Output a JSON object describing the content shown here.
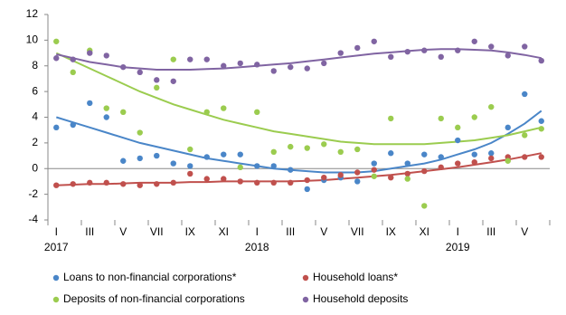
{
  "chart_data": {
    "type": "scatter",
    "categories": [
      "I",
      null,
      "III",
      null,
      "V",
      null,
      "VII",
      null,
      "IX",
      null,
      "XI",
      null,
      "I",
      null,
      "III",
      null,
      "V",
      null,
      "VII",
      null,
      "IX",
      null,
      "XI",
      null,
      "I",
      null,
      "III",
      null,
      "V",
      null
    ],
    "years": [
      "2017",
      "2018",
      "2019"
    ],
    "ylim": [
      -4,
      12
    ],
    "yticks": [
      -4,
      -2,
      0,
      2,
      4,
      6,
      8,
      10,
      12
    ],
    "legend": "bottom",
    "series": [
      {
        "name": "Loans to non-financial corporations*",
        "color": "#4a86c8",
        "values": [
          3.2,
          3.4,
          5.1,
          4.0,
          0.6,
          0.8,
          1.0,
          0.4,
          0.2,
          0.9,
          1.1,
          1.1,
          0.2,
          0.2,
          -0.1,
          -1.6,
          -0.9,
          -0.7,
          -1.0,
          0.4,
          1.2,
          0.4,
          1.1,
          0.9,
          2.2,
          1.1,
          1.2,
          3.2,
          5.8,
          3.7
        ],
        "trend": [
          4.0,
          3.6,
          3.2,
          2.8,
          2.4,
          2.0,
          1.7,
          1.4,
          1.1,
          0.8,
          0.6,
          0.4,
          0.2,
          0.0,
          -0.1,
          -0.2,
          -0.3,
          -0.3,
          -0.3,
          -0.2,
          0.0,
          0.2,
          0.4,
          0.7,
          1.1,
          1.5,
          2.0,
          2.7,
          3.5,
          4.5
        ]
      },
      {
        "name": "Household loans*",
        "color": "#c0504d",
        "values": [
          -1.3,
          -1.2,
          -1.1,
          -1.1,
          -1.2,
          -1.3,
          -1.2,
          -1.1,
          -0.4,
          -0.8,
          -0.8,
          -1.0,
          -1.1,
          -1.1,
          -1.1,
          -0.9,
          -0.7,
          -0.5,
          -0.3,
          -0.1,
          -0.7,
          -0.4,
          -0.2,
          0.1,
          0.4,
          0.5,
          0.8,
          0.9,
          0.9,
          0.9
        ],
        "trend": [
          -1.3,
          -1.25,
          -1.2,
          -1.2,
          -1.15,
          -1.1,
          -1.1,
          -1.1,
          -1.05,
          -1.05,
          -1.0,
          -1.0,
          -1.0,
          -1.0,
          -1.0,
          -0.95,
          -0.9,
          -0.8,
          -0.7,
          -0.6,
          -0.5,
          -0.35,
          -0.2,
          -0.05,
          0.1,
          0.3,
          0.5,
          0.7,
          0.95,
          1.2
        ]
      },
      {
        "name": "Deposits of non-financial corporations",
        "color": "#9bcc4f",
        "values": [
          9.9,
          7.5,
          9.2,
          4.7,
          4.4,
          2.8,
          6.3,
          8.5,
          1.5,
          4.4,
          4.7,
          0.1,
          4.4,
          1.3,
          1.7,
          1.6,
          1.9,
          1.3,
          1.5,
          -0.6,
          3.9,
          -0.8,
          -2.9,
          3.9,
          3.2,
          4.0,
          4.8,
          0.6,
          2.6,
          3.1
        ],
        "trend": [
          9.0,
          8.4,
          7.8,
          7.2,
          6.6,
          6.0,
          5.5,
          5.0,
          4.6,
          4.2,
          3.8,
          3.5,
          3.2,
          2.9,
          2.7,
          2.5,
          2.3,
          2.1,
          2.0,
          1.9,
          1.9,
          1.9,
          1.9,
          2.0,
          2.1,
          2.2,
          2.4,
          2.6,
          2.9,
          3.2
        ]
      },
      {
        "name": "Household deposits",
        "color": "#8064a2",
        "values": [
          8.6,
          8.5,
          9.0,
          8.8,
          7.9,
          7.5,
          6.9,
          6.8,
          8.5,
          8.5,
          8.0,
          8.2,
          8.1,
          7.6,
          7.9,
          7.8,
          8.2,
          9.0,
          9.4,
          9.9,
          8.7,
          9.1,
          9.2,
          8.7,
          9.2,
          9.9,
          9.5,
          8.8,
          9.5,
          8.4
        ],
        "trend": [
          8.9,
          8.6,
          8.3,
          8.1,
          7.9,
          7.8,
          7.7,
          7.7,
          7.7,
          7.75,
          7.8,
          7.9,
          8.0,
          8.1,
          8.2,
          8.35,
          8.5,
          8.65,
          8.8,
          8.95,
          9.05,
          9.15,
          9.25,
          9.3,
          9.3,
          9.25,
          9.2,
          9.05,
          8.85,
          8.6
        ]
      }
    ]
  }
}
